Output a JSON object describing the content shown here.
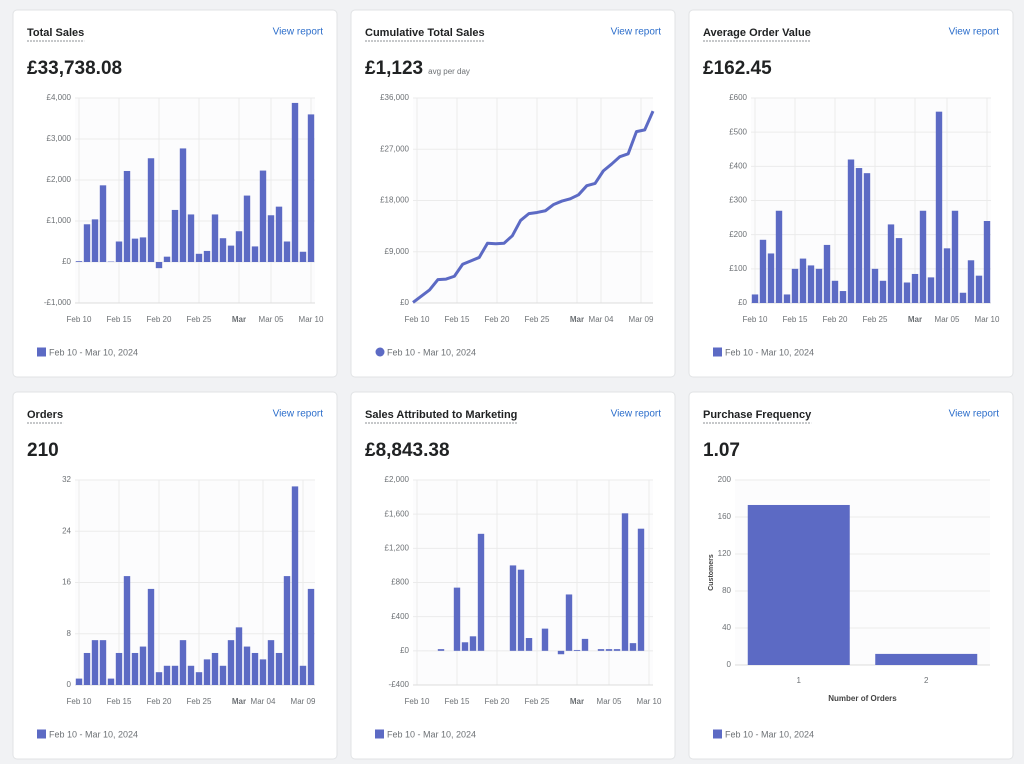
{
  "chart_data": [
    {
      "type": "bar",
      "title": "Total Sales",
      "link": "View report",
      "headline": "£33,738.08",
      "categories": [
        "Feb 10",
        null,
        null,
        null,
        null,
        "Feb 15",
        null,
        null,
        null,
        null,
        "Feb 20",
        null,
        null,
        null,
        null,
        "Feb 25",
        null,
        null,
        null,
        null,
        "Mar",
        null,
        null,
        null,
        "Mar 05",
        null,
        null,
        null,
        null,
        "Mar 10"
      ],
      "series": [
        {
          "name": "Feb 10 - Mar 10, 2024",
          "color": "#5c6ac4",
          "values": [
            20,
            920,
            1040,
            1870,
            10,
            500,
            2220,
            570,
            600,
            2530,
            -150,
            130,
            1270,
            2770,
            1160,
            200,
            270,
            1160,
            580,
            400,
            750,
            1620,
            380,
            2230,
            1140,
            1350,
            500,
            3880,
            250,
            3600
          ]
        }
      ],
      "ylim": [
        -1000,
        4000
      ],
      "yticks": [
        {
          "value": -1000,
          "label": "-£1,000"
        },
        {
          "value": 0,
          "label": "£0"
        },
        {
          "value": 1000,
          "label": "£1,000"
        },
        {
          "value": 2000,
          "label": "£2,000"
        },
        {
          "value": 3000,
          "label": "£3,000"
        },
        {
          "value": 4000,
          "label": "£4,000"
        }
      ],
      "grid": true
    },
    {
      "type": "line",
      "title": "Cumulative Total Sales",
      "link": "View report",
      "headline": "£1,123",
      "headline_note": "avg per day",
      "categories": [
        "Feb 10",
        null,
        null,
        null,
        null,
        "Feb 15",
        null,
        null,
        null,
        null,
        "Feb 20",
        null,
        null,
        null,
        null,
        "Feb 25",
        null,
        null,
        null,
        null,
        "Mar",
        null,
        null,
        "Mar 04",
        null,
        null,
        null,
        null,
        "Mar 09",
        null
      ],
      "series": [
        {
          "name": "Feb 10 - Mar 10, 2024",
          "color": "#5c6ac4",
          "values": [
            100,
            1200,
            2300,
            4100,
            4200,
            4700,
            6800,
            7400,
            8000,
            10500,
            10400,
            10500,
            11800,
            14500,
            15700,
            15900,
            16200,
            17300,
            17900,
            18300,
            19000,
            20600,
            21000,
            23200,
            24400,
            25700,
            26200,
            30100,
            30400,
            33700
          ]
        }
      ],
      "ylim": [
        0,
        36000
      ],
      "yticks": [
        {
          "value": 0,
          "label": "£0"
        },
        {
          "value": 9000,
          "label": "£9,000"
        },
        {
          "value": 18000,
          "label": "£18,000"
        },
        {
          "value": 27000,
          "label": "£27,000"
        },
        {
          "value": 36000,
          "label": "£36,000"
        }
      ],
      "grid": true
    },
    {
      "type": "bar",
      "title": "Average Order Value",
      "link": "View report",
      "headline": "£162.45",
      "categories": [
        "Feb 10",
        null,
        null,
        null,
        null,
        "Feb 15",
        null,
        null,
        null,
        null,
        "Feb 20",
        null,
        null,
        null,
        null,
        "Feb 25",
        null,
        null,
        null,
        null,
        "Mar",
        null,
        null,
        null,
        "Mar 05",
        null,
        null,
        null,
        null,
        "Mar 10"
      ],
      "series": [
        {
          "name": "Feb 10 - Mar 10, 2024",
          "color": "#5c6ac4",
          "values": [
            25,
            185,
            145,
            270,
            25,
            100,
            130,
            110,
            100,
            170,
            65,
            35,
            420,
            395,
            380,
            100,
            65,
            230,
            190,
            60,
            85,
            270,
            75,
            560,
            160,
            270,
            30,
            125,
            80,
            240
          ]
        }
      ],
      "ylim": [
        0,
        600
      ],
      "yticks": [
        {
          "value": 0,
          "label": "£0"
        },
        {
          "value": 100,
          "label": "£100"
        },
        {
          "value": 200,
          "label": "£200"
        },
        {
          "value": 300,
          "label": "£300"
        },
        {
          "value": 400,
          "label": "£400"
        },
        {
          "value": 500,
          "label": "£500"
        },
        {
          "value": 600,
          "label": "£600"
        }
      ],
      "grid": true
    },
    {
      "type": "bar",
      "title": "Orders",
      "link": "View report",
      "headline": "210",
      "categories": [
        "Feb 10",
        null,
        null,
        null,
        null,
        "Feb 15",
        null,
        null,
        null,
        null,
        "Feb 20",
        null,
        null,
        null,
        null,
        "Feb 25",
        null,
        null,
        null,
        null,
        "Mar",
        null,
        null,
        "Mar 04",
        null,
        null,
        null,
        null,
        "Mar 09",
        null
      ],
      "series": [
        {
          "name": "Feb 10 - Mar 10, 2024",
          "color": "#5c6ac4",
          "values": [
            1,
            5,
            7,
            7,
            1,
            5,
            17,
            5,
            6,
            15,
            2,
            3,
            3,
            7,
            3,
            2,
            4,
            5,
            3,
            7,
            9,
            6,
            5,
            4,
            7,
            5,
            17,
            31,
            3,
            15
          ]
        }
      ],
      "ylim": [
        0,
        32
      ],
      "yticks": [
        0,
        8,
        16,
        24,
        32
      ],
      "grid": true
    },
    {
      "type": "bar",
      "title": "Sales Attributed to Marketing",
      "link": "View report",
      "headline": "£8,843.38",
      "categories": [
        "Feb 10",
        null,
        null,
        null,
        null,
        "Feb 15",
        null,
        null,
        null,
        null,
        "Feb 20",
        null,
        null,
        null,
        null,
        "Feb 25",
        null,
        null,
        null,
        null,
        "Mar",
        null,
        null,
        null,
        "Mar 05",
        null,
        null,
        null,
        null,
        "Mar 10"
      ],
      "series": [
        {
          "name": "Feb 10 - Mar 10, 2024",
          "color": "#5c6ac4",
          "values": [
            0,
            0,
            0,
            20,
            0,
            740,
            100,
            170,
            1370,
            0,
            0,
            0,
            1000,
            950,
            150,
            0,
            260,
            0,
            -40,
            660,
            10,
            140,
            0,
            20,
            20,
            20,
            1610,
            90,
            1430,
            0
          ]
        }
      ],
      "ylim": [
        -400,
        2000
      ],
      "yticks": [
        {
          "value": -400,
          "label": "-£400"
        },
        {
          "value": 0,
          "label": "£0"
        },
        {
          "value": 400,
          "label": "£400"
        },
        {
          "value": 800,
          "label": "£800"
        },
        {
          "value": 1200,
          "label": "£1,200"
        },
        {
          "value": 1600,
          "label": "£1,600"
        },
        {
          "value": 2000,
          "label": "£2,000"
        }
      ],
      "grid": true
    },
    {
      "type": "bar",
      "title": "Purchase Frequency",
      "link": "View report",
      "headline": "1.07",
      "categories": [
        "1",
        "2"
      ],
      "xlabel": "Number of Orders",
      "ylabel": "Customers",
      "series": [
        {
          "name": "Feb 10 - Mar 10, 2024",
          "color": "#5c6ac4",
          "values": [
            173,
            12
          ]
        }
      ],
      "ylim": [
        0,
        200
      ],
      "yticks": [
        0,
        40,
        80,
        120,
        160,
        200
      ],
      "grid": true
    }
  ]
}
